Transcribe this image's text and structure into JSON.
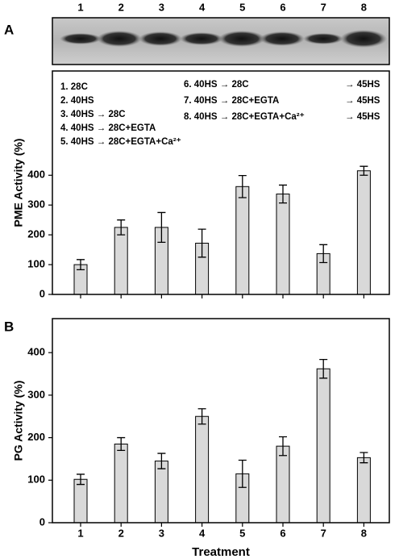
{
  "chart_data": [
    {
      "type": "bar",
      "panel": "A",
      "categories": [
        "1",
        "2",
        "3",
        "4",
        "5",
        "6",
        "7",
        "8"
      ],
      "values": [
        100,
        225,
        225,
        172,
        362,
        337,
        137,
        415
      ],
      "errors": [
        17,
        25,
        50,
        47,
        37,
        30,
        30,
        15
      ],
      "color": "#d9d9d9",
      "ylabel": "PME Activity (%)",
      "ylim": [
        0,
        750
      ],
      "yticks": [
        0,
        100,
        200,
        300,
        400
      ],
      "legend": [
        [
          "1. 28C"
        ],
        [
          "2. 40HS"
        ],
        [
          "3. 40HS → 28C"
        ],
        [
          "4. 40HS → 28C+EGTA"
        ],
        [
          "5. 40HS → 28C+EGTA+Ca²⁺"
        ],
        [
          "6. 40HS → 28C",
          "→ 45HS"
        ],
        [
          "7. 40HS → 28C+EGTA",
          "→ 45HS"
        ],
        [
          "8. 40HS → 28C+EGTA+Ca²⁺",
          "→ 45HS"
        ]
      ]
    },
    {
      "type": "bar",
      "panel": "B",
      "categories": [
        "1",
        "2",
        "3",
        "4",
        "5",
        "6",
        "7",
        "8"
      ],
      "values": [
        102,
        185,
        145,
        250,
        115,
        180,
        362,
        153
      ],
      "errors": [
        12,
        15,
        18,
        18,
        32,
        22,
        22,
        12
      ],
      "color": "#d9d9d9",
      "ylabel": "PG Activity (%)",
      "xlabel": "Treatment",
      "ylim": [
        0,
        480
      ],
      "yticks": [
        0,
        100,
        200,
        300,
        400
      ]
    }
  ]
}
